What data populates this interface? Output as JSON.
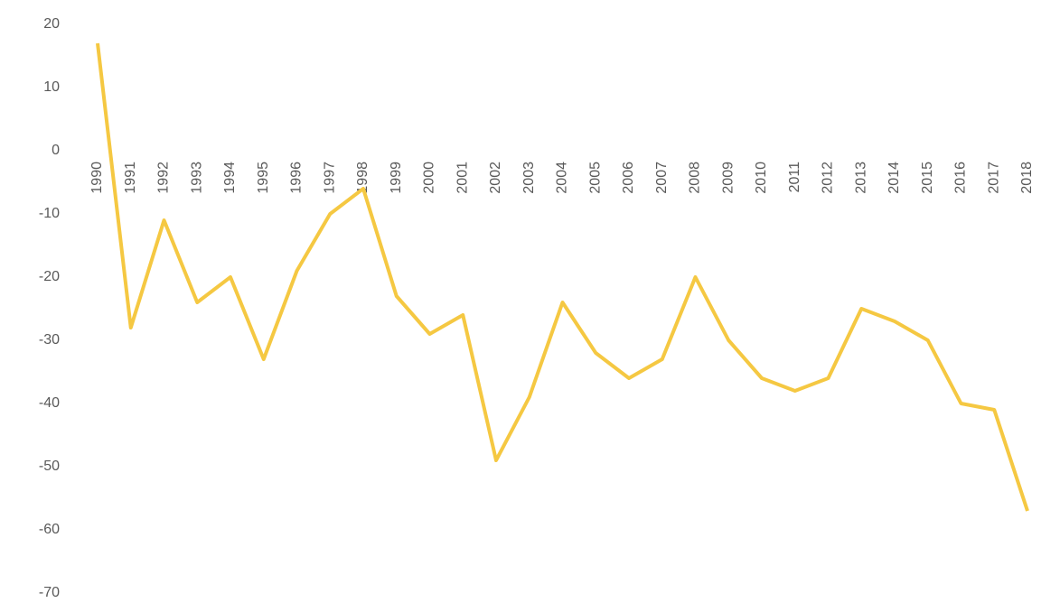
{
  "chart_data": {
    "type": "line",
    "categories": [
      "1990",
      "1991",
      "1992",
      "1993",
      "1994",
      "1995",
      "1996",
      "1997",
      "1998",
      "1999",
      "2000",
      "2001",
      "2002",
      "2003",
      "2004",
      "2005",
      "2006",
      "2007",
      "2008",
      "2009",
      "2010",
      "2011",
      "2012",
      "2013",
      "2014",
      "2015",
      "2016",
      "2017",
      "2018"
    ],
    "series": [
      {
        "color": "#f5c842",
        "values": [
          17,
          -28,
          -11,
          -24,
          -20,
          -33,
          -19,
          -10,
          -6,
          -23,
          -29,
          -26,
          -49,
          -39,
          -24,
          -32,
          -36,
          -33,
          -20,
          -30,
          -36,
          -38,
          -36,
          -25,
          -27,
          -30,
          -40,
          -41,
          -57
        ]
      }
    ],
    "ylim": [
      -70,
      20
    ],
    "yticks": [
      -70,
      -60,
      -50,
      -40,
      -30,
      -20,
      -10,
      0,
      10,
      20
    ],
    "grid": false
  }
}
